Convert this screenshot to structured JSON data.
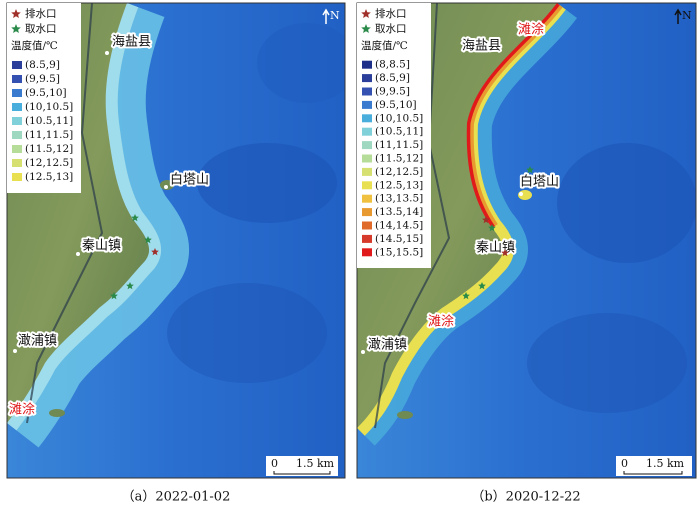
{
  "panels": [
    {
      "legend": {
        "outfall": "排水口",
        "intake": "取水口",
        "title": "温度值/℃",
        "items": [
          {
            "label": "(8.5,9]",
            "color": "#2b3f9a"
          },
          {
            "label": "(9,9.5]",
            "color": "#3450b0"
          },
          {
            "label": "(9.5,10]",
            "color": "#3a7bd0"
          },
          {
            "label": "(10,10.5]",
            "color": "#4aaedc"
          },
          {
            "label": "(10.5,11]",
            "color": "#7fd0d8"
          },
          {
            "label": "(11,11.5]",
            "color": "#9fd8c0"
          },
          {
            "label": "(11.5,12]",
            "color": "#b6dc9a"
          },
          {
            "label": "(12,12.5]",
            "color": "#d6e070"
          },
          {
            "label": "(12.5,13]",
            "color": "#e8e050"
          }
        ]
      },
      "places": [
        "海盐县",
        "白塔山",
        "秦山镇",
        "澉浦镇",
        "滩涂"
      ],
      "scale": {
        "zero": "0",
        "distance": "1.5 km"
      },
      "north": "N",
      "caption": "（a）2022-01-02"
    },
    {
      "legend": {
        "outfall": "排水口",
        "intake": "取水口",
        "title": "温度值/℃",
        "items": [
          {
            "label": "(8,8.5]",
            "color": "#1e2f8a"
          },
          {
            "label": "(8.5,9]",
            "color": "#2b3f9a"
          },
          {
            "label": "(9,9.5]",
            "color": "#3450b0"
          },
          {
            "label": "(9.5,10]",
            "color": "#3a7bd0"
          },
          {
            "label": "(10,10.5]",
            "color": "#4aaedc"
          },
          {
            "label": "(10.5,11]",
            "color": "#7fd0d8"
          },
          {
            "label": "(11,11.5]",
            "color": "#9fd8c0"
          },
          {
            "label": "(11.5,12]",
            "color": "#b6dc9a"
          },
          {
            "label": "(12,12.5]",
            "color": "#d6e070"
          },
          {
            "label": "(12.5,13]",
            "color": "#e8e050"
          },
          {
            "label": "(13,13.5]",
            "color": "#f0c040"
          },
          {
            "label": "(13.5,14]",
            "color": "#e89a30"
          },
          {
            "label": "(14,14.5]",
            "color": "#e06a2a"
          },
          {
            "label": "(14.5,15]",
            "color": "#d63a2a"
          },
          {
            "label": "(15,15.5]",
            "color": "#e01a1a"
          }
        ]
      },
      "places": [
        "滩涂",
        "海盐县",
        "白塔山",
        "秦山镇",
        "滩涂",
        "澉浦镇"
      ],
      "scale": {
        "zero": "0",
        "distance": "1.5 km"
      },
      "north": "N",
      "caption": "（b）2020-12-22"
    }
  ]
}
